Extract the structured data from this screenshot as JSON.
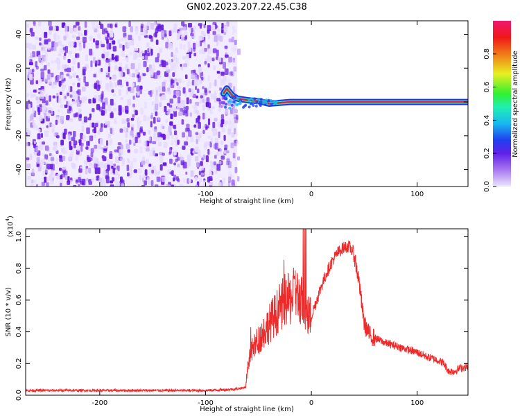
{
  "title": "GN02.2023.207.22.45.C38",
  "colors": {
    "noise": "#7a2ee8",
    "snr_line": "#ee2a2a",
    "ridge": "#e8203a",
    "colormap_stops": [
      "#e8e0ff",
      "#7a2ee8",
      "#2030f0",
      "#18b0f0",
      "#20f0a0",
      "#30f040",
      "#e8f020",
      "#f07818",
      "#f01818",
      "#f0187a"
    ]
  },
  "chart_data": [
    {
      "type": "heatmap",
      "title": "GN02.2023.207.22.45.C38",
      "xlabel": "Height of straight line (km)",
      "ylabel": "Frequency (Hz)",
      "xlim": [
        -270,
        148
      ],
      "ylim": [
        -50,
        48
      ],
      "xticks": [
        -200,
        -100,
        0,
        100
      ],
      "xtick_labels": [
        "-200",
        "-100",
        "0",
        "100"
      ],
      "yticks": [
        -40,
        -20,
        0,
        20,
        40
      ],
      "ytick_labels": [
        "-40",
        "-20",
        "0",
        "20",
        "40"
      ],
      "noise_region_x": [
        -270,
        -70
      ],
      "ridge": {
        "frequency": 0,
        "x_start": -83,
        "x_end": 148,
        "points": [
          {
            "x": -83,
            "f": 5
          },
          {
            "x": -80,
            "f": 8
          },
          {
            "x": -75,
            "f": 4
          },
          {
            "x": -70,
            "f": 2
          },
          {
            "x": -60,
            "f": 1
          },
          {
            "x": -50,
            "f": 0.5
          },
          {
            "x": -40,
            "f": -1
          },
          {
            "x": -30,
            "f": -0.5
          },
          {
            "x": -20,
            "f": 0
          },
          {
            "x": -10,
            "f": 0
          },
          {
            "x": 0,
            "f": 0
          },
          {
            "x": 25,
            "f": 0
          },
          {
            "x": 50,
            "f": 0
          },
          {
            "x": 75,
            "f": 0
          },
          {
            "x": 100,
            "f": 0
          },
          {
            "x": 125,
            "f": 0
          },
          {
            "x": 148,
            "f": 0
          }
        ]
      },
      "colorbar": {
        "label": "Normalized spectral amplitude",
        "range": [
          0,
          1
        ],
        "ticks": [
          0.0,
          0.2,
          0.4,
          0.6,
          0.8
        ],
        "tick_labels": [
          "0.0",
          "0.2",
          "0.4",
          "0.6",
          "0.8"
        ]
      }
    },
    {
      "type": "line",
      "xlabel": "Height of straight line (km)",
      "ylabel": "SNR (10 * v/v)",
      "y_multiplier": "(x10",
      "y_exponent": "4",
      "y_multiplier_close": ")",
      "xlim": [
        -270,
        148
      ],
      "ylim": [
        0,
        1.05
      ],
      "xticks": [
        -200,
        -100,
        0,
        100
      ],
      "xtick_labels": [
        "-200",
        "-100",
        "0",
        "100"
      ],
      "yticks": [
        0.0,
        0.2,
        0.4,
        0.6,
        0.8,
        1.0
      ],
      "ytick_labels": [
        "0.0",
        "0.2",
        "0.4",
        "0.6",
        "0.8",
        "1.0"
      ],
      "series": [
        {
          "x": [
            -270,
            -250,
            -200,
            -150,
            -100,
            -80,
            -70,
            -62,
            -60,
            -55,
            -50,
            -45,
            -40,
            -35,
            -30,
            -25,
            -20,
            -15,
            -10,
            -6,
            -5,
            0,
            5,
            10,
            15,
            20,
            25,
            30,
            35,
            40,
            45,
            48,
            50,
            55,
            60,
            70,
            80,
            90,
            100,
            110,
            120,
            125,
            130,
            135,
            140,
            148
          ],
          "y": [
            0.03,
            0.03,
            0.03,
            0.03,
            0.03,
            0.035,
            0.04,
            0.05,
            0.2,
            0.3,
            0.35,
            0.4,
            0.45,
            0.5,
            0.55,
            0.6,
            0.6,
            0.65,
            0.6,
            0.55,
            0.5,
            0.5,
            0.6,
            0.7,
            0.78,
            0.85,
            0.9,
            0.93,
            0.94,
            0.9,
            0.72,
            0.55,
            0.45,
            0.38,
            0.36,
            0.33,
            0.31,
            0.29,
            0.27,
            0.24,
            0.22,
            0.2,
            0.15,
            0.15,
            0.17,
            0.18
          ]
        }
      ]
    }
  ]
}
